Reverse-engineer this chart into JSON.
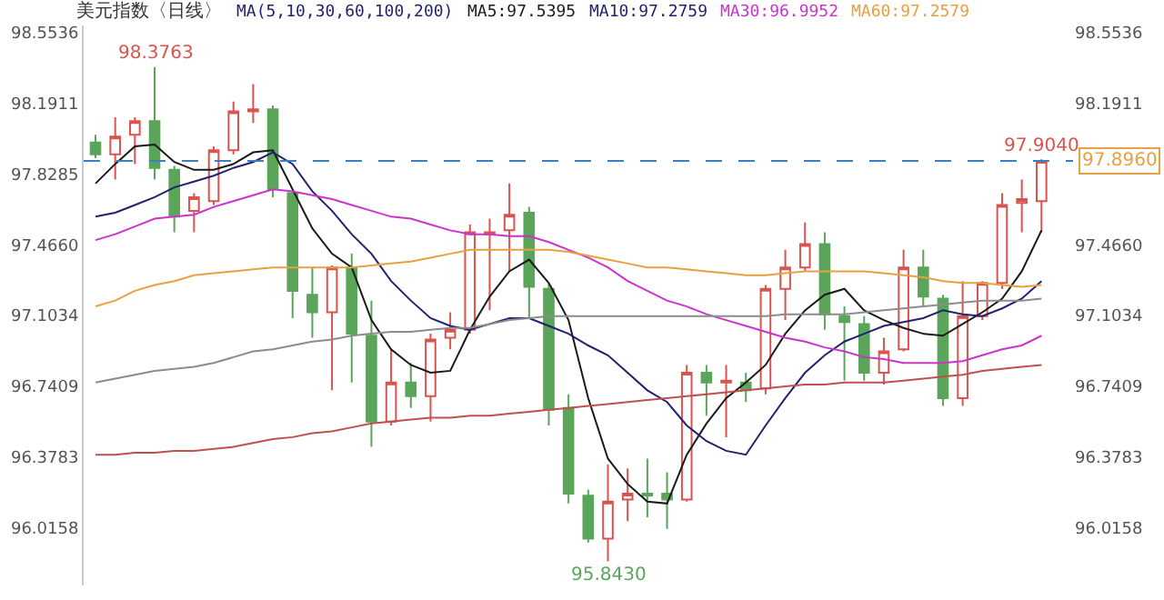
{
  "chart_data": {
    "type": "candlestick",
    "title": "美元指数〈日线〉",
    "annotations": [
      "MA(5,10,30,60,100,200)",
      {
        "text": "98.3763",
        "y": 98.3763
      },
      {
        "text": "95.8430",
        "y": 95.843
      },
      {
        "text": "97.9040",
        "y": 97.904
      }
    ],
    "categories": [
      null,
      null,
      null,
      null,
      null,
      null,
      null,
      null,
      null,
      null,
      null,
      null,
      null,
      null,
      null,
      null,
      null,
      null,
      null,
      null,
      null,
      null,
      null,
      null,
      null,
      null,
      null,
      null,
      null,
      null,
      null,
      null,
      null,
      null,
      null,
      null,
      null,
      null,
      null,
      null,
      null,
      null,
      null,
      null,
      null,
      null,
      null,
      null,
      null
    ],
    "ohlc": [
      [
        97.99,
        98.03,
        97.91,
        97.93
      ],
      [
        97.93,
        98.12,
        97.8,
        98.02
      ],
      [
        98.03,
        98.12,
        97.88,
        98.1
      ],
      [
        98.1,
        98.3763,
        97.8,
        97.86
      ],
      [
        97.85,
        97.87,
        97.53,
        97.61
      ],
      [
        97.64,
        97.73,
        97.53,
        97.71
      ],
      [
        97.69,
        97.97,
        97.67,
        97.95
      ],
      [
        97.95,
        98.2,
        97.93,
        98.15
      ],
      [
        98.15,
        98.29,
        98.09,
        98.16
      ],
      [
        98.16,
        98.18,
        97.71,
        97.75
      ],
      [
        97.73,
        97.74,
        97.09,
        97.23
      ],
      [
        97.21,
        97.35,
        96.99,
        97.12
      ],
      [
        97.12,
        97.36,
        96.72,
        97.35
      ],
      [
        97.35,
        97.42,
        96.76,
        97.01
      ],
      [
        97.0,
        97.18,
        96.43,
        96.56
      ],
      [
        96.56,
        96.93,
        96.54,
        96.76
      ],
      [
        96.76,
        96.86,
        96.63,
        96.69
      ],
      [
        96.69,
        97.01,
        96.56,
        96.98
      ],
      [
        96.99,
        97.12,
        96.93,
        97.03
      ],
      [
        97.03,
        97.57,
        97.01,
        97.53
      ],
      [
        97.52,
        97.6,
        97.13,
        97.53
      ],
      [
        97.54,
        97.78,
        97.33,
        97.62
      ],
      [
        97.63,
        97.66,
        97.09,
        97.25
      ],
      [
        97.24,
        97.27,
        96.54,
        96.62
      ],
      [
        96.63,
        96.7,
        96.14,
        96.19
      ],
      [
        96.18,
        96.21,
        95.94,
        95.96
      ],
      [
        95.96,
        96.34,
        95.843,
        96.15
      ],
      [
        96.16,
        96.32,
        96.05,
        96.19
      ],
      [
        96.19,
        96.37,
        96.07,
        96.18
      ],
      [
        96.19,
        96.3,
        96.01,
        96.16
      ],
      [
        96.16,
        96.85,
        96.15,
        96.81
      ],
      [
        96.81,
        96.85,
        96.59,
        96.76
      ],
      [
        96.76,
        96.85,
        96.48,
        96.77
      ],
      [
        96.76,
        96.81,
        96.66,
        96.72
      ],
      [
        96.73,
        97.26,
        96.7,
        97.24
      ],
      [
        97.24,
        97.44,
        97.08,
        97.35
      ],
      [
        97.35,
        97.58,
        97.33,
        97.47
      ],
      [
        97.47,
        97.53,
        97.03,
        97.11
      ],
      [
        97.1,
        97.15,
        96.77,
        97.07
      ],
      [
        97.06,
        97.1,
        96.77,
        96.81
      ],
      [
        96.81,
        96.99,
        96.75,
        96.92
      ],
      [
        96.93,
        97.44,
        96.92,
        97.35
      ],
      [
        97.35,
        97.44,
        97.15,
        97.2
      ],
      [
        97.19,
        97.21,
        96.64,
        96.68
      ],
      [
        96.68,
        97.28,
        96.64,
        97.1
      ],
      [
        97.1,
        97.28,
        97.08,
        97.27
      ],
      [
        97.27,
        97.73,
        97.24,
        97.67
      ],
      [
        97.68,
        97.8,
        97.53,
        97.7
      ],
      [
        97.69,
        97.904,
        97.53,
        97.896
      ]
    ],
    "colors": [
      "#5aa55a",
      "#d9534f",
      "#d9534f",
      "#5aa55a",
      "#5aa55a",
      "#d9534f",
      "#d9534f",
      "#d9534f",
      "#d9534f",
      "#5aa55a",
      "#5aa55a",
      "#5aa55a",
      "#d9534f",
      "#5aa55a",
      "#5aa55a",
      "#d9534f",
      "#5aa55a",
      "#d9534f",
      "#d9534f",
      "#d9534f",
      "#d9534f",
      "#d9534f",
      "#5aa55a",
      "#5aa55a",
      "#5aa55a",
      "#5aa55a",
      "#d9534f",
      "#d9534f",
      "#5aa55a",
      "#5aa55a",
      "#d9534f",
      "#5aa55a",
      "#d9534f",
      "#5aa55a",
      "#d9534f",
      "#d9534f",
      "#d9534f",
      "#5aa55a",
      "#5aa55a",
      "#5aa55a",
      "#d9534f",
      "#d9534f",
      "#5aa55a",
      "#5aa55a",
      "#d9534f",
      "#d9534f",
      "#d9534f",
      "#d9534f",
      "#d9534f"
    ],
    "series": [
      {
        "type": "line",
        "name": "MA5:97.5395",
        "color": "#1a1a1a",
        "values": [
          97.78,
          97.88,
          97.97,
          97.98,
          97.89,
          97.85,
          97.85,
          97.88,
          97.94,
          97.95,
          97.75,
          97.55,
          97.42,
          97.35,
          97.08,
          96.93,
          96.85,
          96.81,
          96.82,
          97.03,
          97.2,
          97.33,
          97.39,
          97.27,
          97.08,
          96.68,
          96.37,
          96.24,
          96.15,
          96.14,
          96.39,
          96.55,
          96.68,
          96.76,
          96.85,
          97.01,
          97.13,
          97.21,
          97.24,
          97.13,
          97.08,
          97.04,
          97.01,
          97.0,
          97.06,
          97.12,
          97.19,
          97.33,
          97.54
        ]
      },
      {
        "type": "line",
        "name": "MA10:97.2759",
        "color": "#22226e",
        "values": [
          97.61,
          97.63,
          97.67,
          97.71,
          97.76,
          97.79,
          97.82,
          97.86,
          97.89,
          97.94,
          97.88,
          97.74,
          97.64,
          97.52,
          97.42,
          97.28,
          97.18,
          97.09,
          97.05,
          97.03,
          97.06,
          97.09,
          97.09,
          97.05,
          97.01,
          96.95,
          96.9,
          96.81,
          96.72,
          96.66,
          96.54,
          96.46,
          96.41,
          96.39,
          96.54,
          96.68,
          96.81,
          96.9,
          96.97,
          97.01,
          97.05,
          97.07,
          97.09,
          97.13,
          97.11,
          97.1,
          97.14,
          97.19,
          97.28
        ]
      },
      {
        "type": "line",
        "name": "MA30:96.9952",
        "color": "#cc33cc",
        "values": [
          97.49,
          97.52,
          97.56,
          97.6,
          97.61,
          97.62,
          97.66,
          97.69,
          97.72,
          97.75,
          97.74,
          97.72,
          97.7,
          97.67,
          97.64,
          97.61,
          97.6,
          97.57,
          97.54,
          97.52,
          97.52,
          97.51,
          97.51,
          97.48,
          97.44,
          97.4,
          97.35,
          97.28,
          97.23,
          97.18,
          97.15,
          97.11,
          97.08,
          97.05,
          97.02,
          96.99,
          96.97,
          96.94,
          96.92,
          96.89,
          96.88,
          96.86,
          96.86,
          96.86,
          96.87,
          96.9,
          96.93,
          96.95,
          97.0
        ]
      },
      {
        "type": "line",
        "name": "MA60:97.2579",
        "color": "#e8a040",
        "values": [
          97.15,
          97.18,
          97.23,
          97.26,
          97.28,
          97.31,
          97.32,
          97.33,
          97.34,
          97.35,
          97.35,
          97.35,
          97.35,
          97.35,
          97.36,
          97.37,
          97.38,
          97.4,
          97.42,
          97.44,
          97.44,
          97.44,
          97.44,
          97.44,
          97.43,
          97.41,
          97.39,
          97.37,
          97.35,
          97.35,
          97.34,
          97.33,
          97.32,
          97.31,
          97.31,
          97.32,
          97.33,
          97.33,
          97.33,
          97.33,
          97.32,
          97.31,
          97.3,
          97.28,
          97.27,
          97.27,
          97.26,
          97.25,
          97.26
        ]
      },
      {
        "type": "line",
        "color": "#8c8c8c",
        "values": [
          96.76,
          96.78,
          96.8,
          96.82,
          96.83,
          96.84,
          96.86,
          96.89,
          96.92,
          96.93,
          96.95,
          96.97,
          96.98,
          97.0,
          97.01,
          97.02,
          97.02,
          97.03,
          97.04,
          97.04,
          97.06,
          97.08,
          97.09,
          97.1,
          97.1,
          97.1,
          97.1,
          97.1,
          97.1,
          97.1,
          97.1,
          97.1,
          97.1,
          97.1,
          97.1,
          97.11,
          97.11,
          97.11,
          97.11,
          97.12,
          97.13,
          97.14,
          97.15,
          97.16,
          97.17,
          97.18,
          97.18,
          97.18,
          97.19
        ]
      },
      {
        "type": "line",
        "color": "#c0504d",
        "values": [
          96.39,
          96.39,
          96.4,
          96.4,
          96.41,
          96.41,
          96.42,
          96.43,
          96.45,
          96.47,
          96.48,
          96.5,
          96.51,
          96.53,
          96.55,
          96.56,
          96.57,
          96.58,
          96.58,
          96.59,
          96.59,
          96.6,
          96.61,
          96.62,
          96.63,
          96.64,
          96.65,
          96.66,
          96.67,
          96.68,
          96.69,
          96.7,
          96.71,
          96.72,
          96.73,
          96.74,
          96.75,
          96.75,
          96.76,
          96.76,
          96.76,
          96.77,
          96.78,
          96.79,
          96.8,
          96.82,
          96.83,
          96.84,
          96.85
        ]
      }
    ],
    "ref_lines": [
      {
        "axis": "y",
        "value": 97.896,
        "label": "97.8960",
        "color": "#3a7fc1",
        "line_style": "dashed"
      }
    ],
    "ylim": [
      95.72,
      98.59
    ],
    "yticks": [
      98.5536,
      98.1911,
      97.8285,
      {
        "value": 97.466,
        "label": "97.4660"
      },
      97.1034,
      96.7409,
      96.3783,
      96.0158
    ],
    "y2lim": [
      95.72,
      98.59
    ],
    "y2ticks": [
      98.5536,
      98.1911,
      {
        "value": 97.466,
        "label": "97.4660"
      },
      97.1034,
      96.7409,
      96.3783,
      96.0158
    ],
    "tick_labels": "y"
  }
}
